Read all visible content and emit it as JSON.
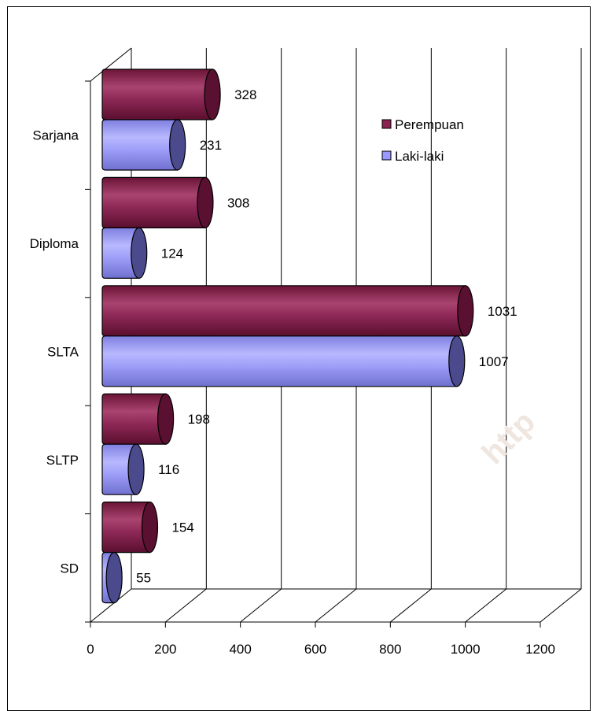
{
  "chart_data": {
    "type": "bar",
    "orientation": "horizontal",
    "style": "3d-cylinder",
    "categories": [
      "Sarjana",
      "Diploma",
      "SLTA",
      "SLTP",
      "SD"
    ],
    "series": [
      {
        "name": "Perempuan",
        "values": [
          328,
          308,
          1031,
          198,
          154
        ],
        "color": "#8B2252"
      },
      {
        "name": "Laki-laki",
        "values": [
          231,
          124,
          1007,
          116,
          55
        ],
        "color": "#9999FF"
      }
    ],
    "xlim": [
      0,
      1200
    ],
    "xticks": [
      "0",
      "200",
      "400",
      "600",
      "800",
      "1000",
      "1200"
    ],
    "title": "",
    "xlabel": "",
    "ylabel": "",
    "grid": "vertical",
    "legend_position": "top-right"
  },
  "watermark": "http"
}
